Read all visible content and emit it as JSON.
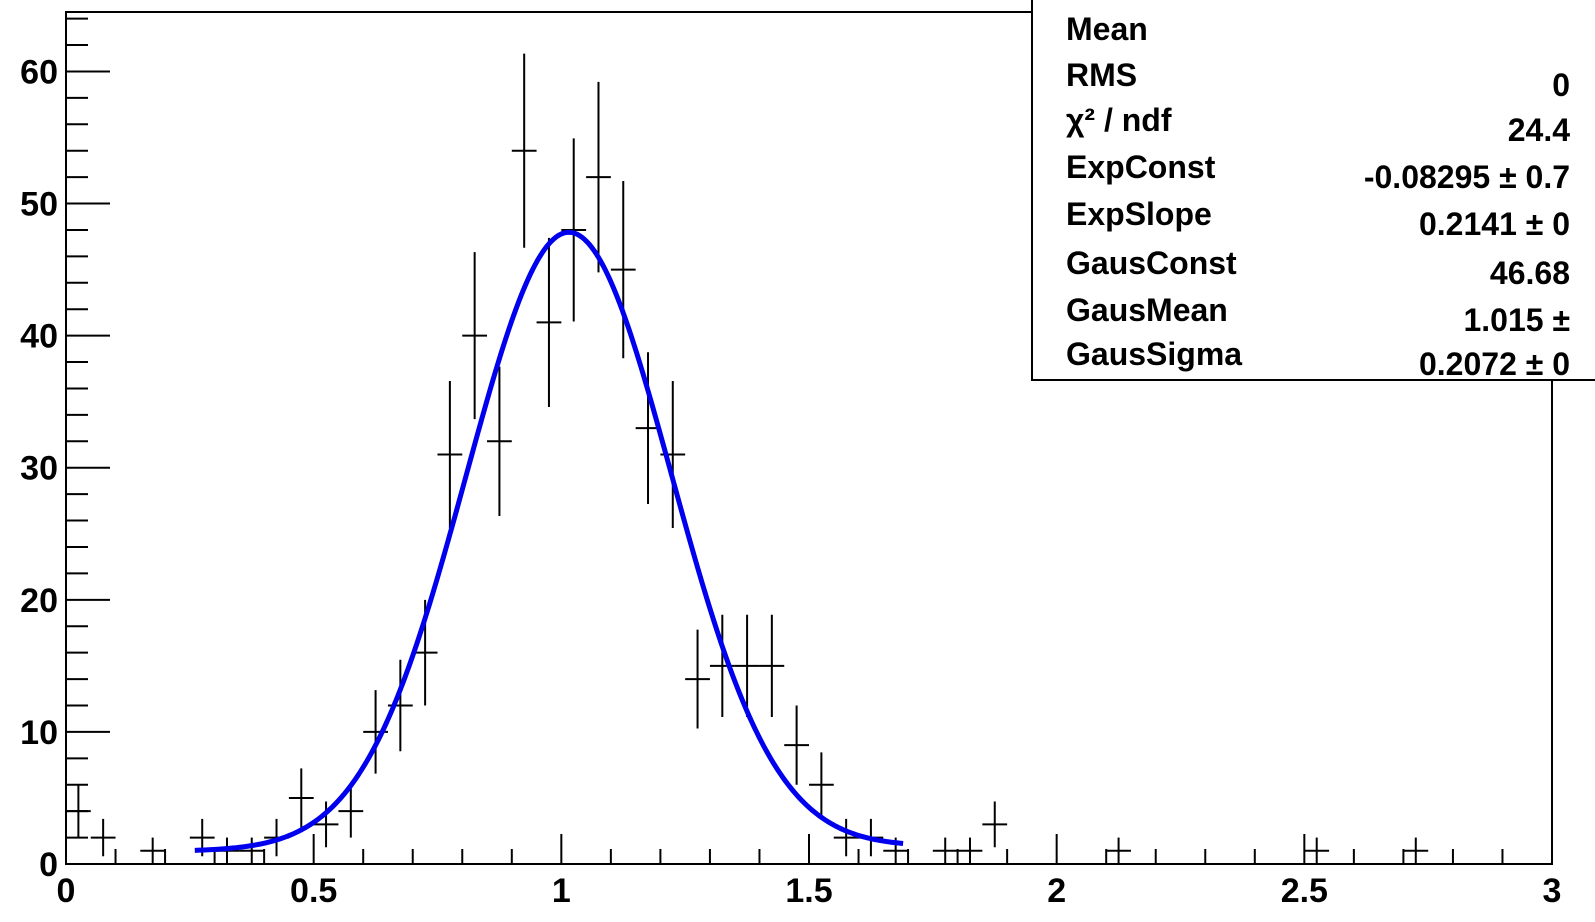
{
  "chart_data": {
    "type": "scatter",
    "title": "",
    "xlabel": "",
    "ylabel": "",
    "xlim": [
      0,
      3
    ],
    "ylim": [
      0,
      64.5
    ],
    "x_ticks": [
      "0",
      "0.5",
      "1",
      "1.5",
      "2",
      "2.5",
      "3"
    ],
    "y_ticks": [
      "0",
      "10",
      "20",
      "30",
      "40",
      "50",
      "60"
    ],
    "bin_width": 0.05,
    "series": [
      {
        "type": "histogram_errorbars",
        "color": "#000000",
        "x": [
          0.025,
          0.075,
          0.175,
          0.275,
          0.325,
          0.375,
          0.425,
          0.475,
          0.525,
          0.575,
          0.625,
          0.675,
          0.725,
          0.775,
          0.825,
          0.875,
          0.925,
          0.975,
          1.025,
          1.075,
          1.125,
          1.175,
          1.225,
          1.275,
          1.325,
          1.375,
          1.425,
          1.475,
          1.525,
          1.575,
          1.625,
          1.675,
          1.775,
          1.825,
          1.875,
          2.125,
          2.525,
          2.725
        ],
        "y": [
          4,
          2,
          1,
          2,
          1,
          1,
          2,
          5,
          3,
          4,
          10,
          12,
          16,
          31,
          40,
          32,
          54,
          41,
          48,
          52,
          45,
          33,
          31,
          14,
          15,
          15,
          15,
          9,
          6,
          2,
          2,
          1,
          1,
          1,
          3,
          1,
          1,
          1
        ]
      },
      {
        "type": "fit_curve",
        "color": "#0000ee",
        "function": "exp(ExpConst + ExpSlope*x) + GausConst*exp(-0.5*((x-GausMean)/GausSigma)^2)",
        "x_range": [
          0.26,
          1.69
        ],
        "params": {
          "ExpConst": -0.08295,
          "ExpSlope": 0.2141,
          "GausConst": 46.68,
          "GausMean": 1.015,
          "GausSigma": 0.2072
        }
      }
    ],
    "stats_box": {
      "rows": [
        {
          "label": "Mean",
          "value": ""
        },
        {
          "label": "RMS",
          "value": "0"
        },
        {
          "label": "χ² / ndf",
          "value": "24.4"
        },
        {
          "label": "ExpConst",
          "value": "-0.08295 ± 0.7"
        },
        {
          "label": "ExpSlope",
          "value": "0.2141 ± 0"
        },
        {
          "label": "GausConst",
          "value": "46.68"
        },
        {
          "label": "GausMean",
          "value": "1.015 ±"
        },
        {
          "label": "GausSigma",
          "value": "0.2072 ± 0"
        }
      ]
    }
  }
}
